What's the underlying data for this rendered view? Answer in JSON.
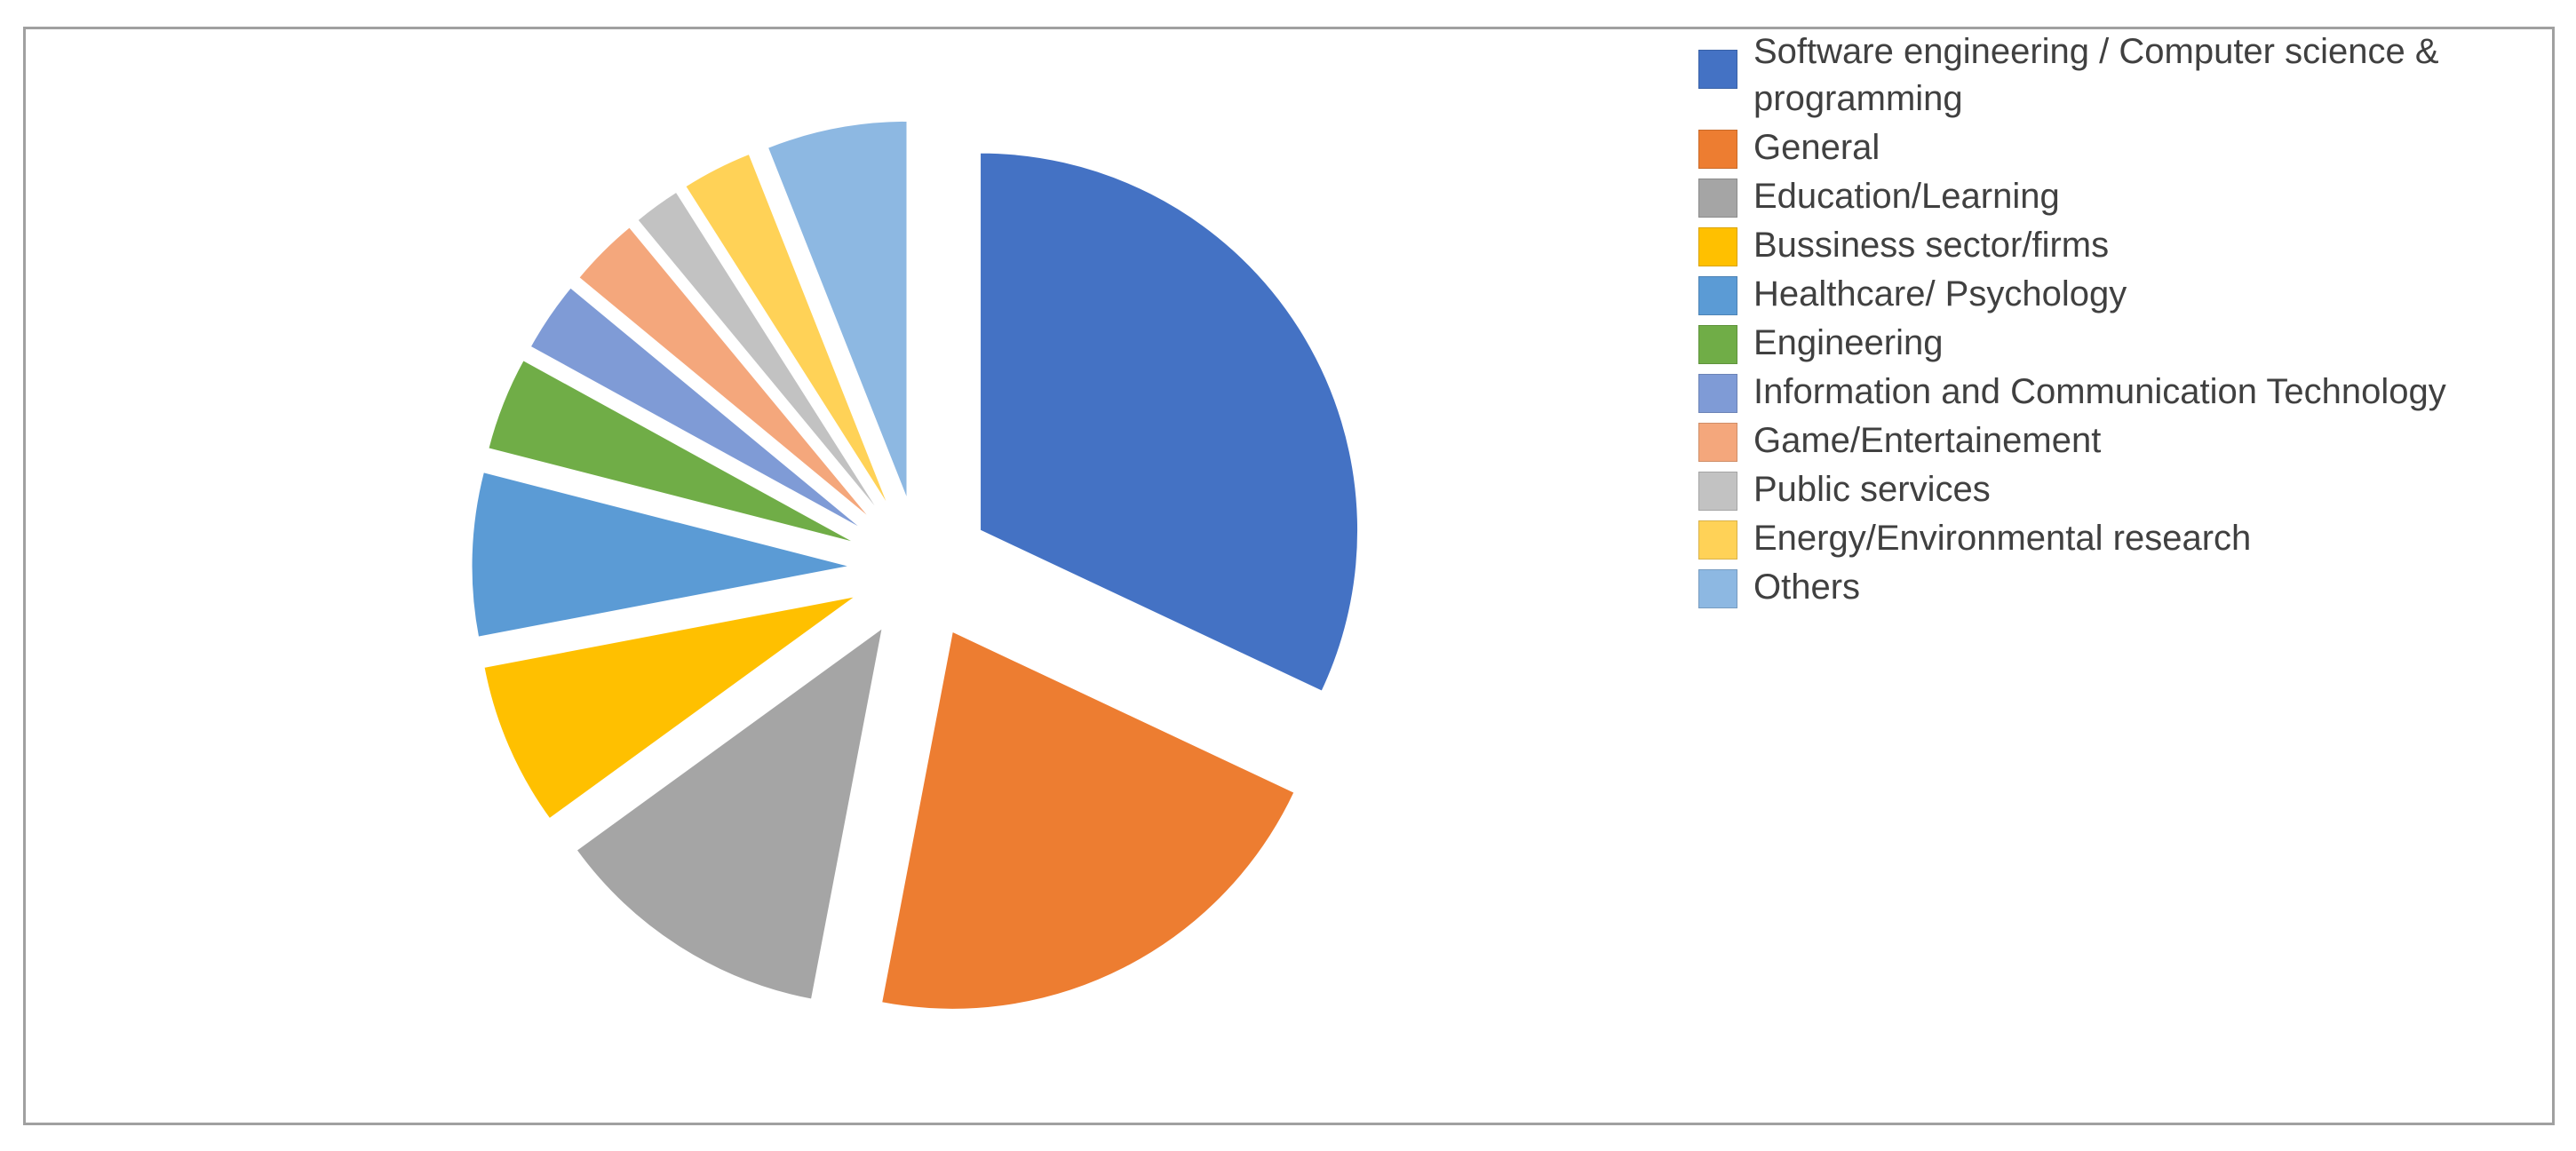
{
  "chart_data": {
    "type": "pie",
    "categories": [
      "Software engineering / Computer science & programming",
      "General",
      "Education/Learning",
      "Bussiness sector/firms",
      "Healthcare/ Psychology",
      "Engineering",
      "Information and Communication Technology",
      "Game/Entertainement",
      "Public services",
      "Energy/Environmental research",
      "Others"
    ],
    "values": [
      32,
      21,
      12,
      7,
      7,
      4,
      3,
      3,
      2,
      3,
      6
    ],
    "colors": [
      "#4472c4",
      "#ed7d31",
      "#a5a5a5",
      "#ffc000",
      "#5b9bd5",
      "#70ad47",
      "#7f9bd6",
      "#f4a77c",
      "#c2c2c2",
      "#ffd257",
      "#8db8e2"
    ],
    "legend": "right"
  }
}
